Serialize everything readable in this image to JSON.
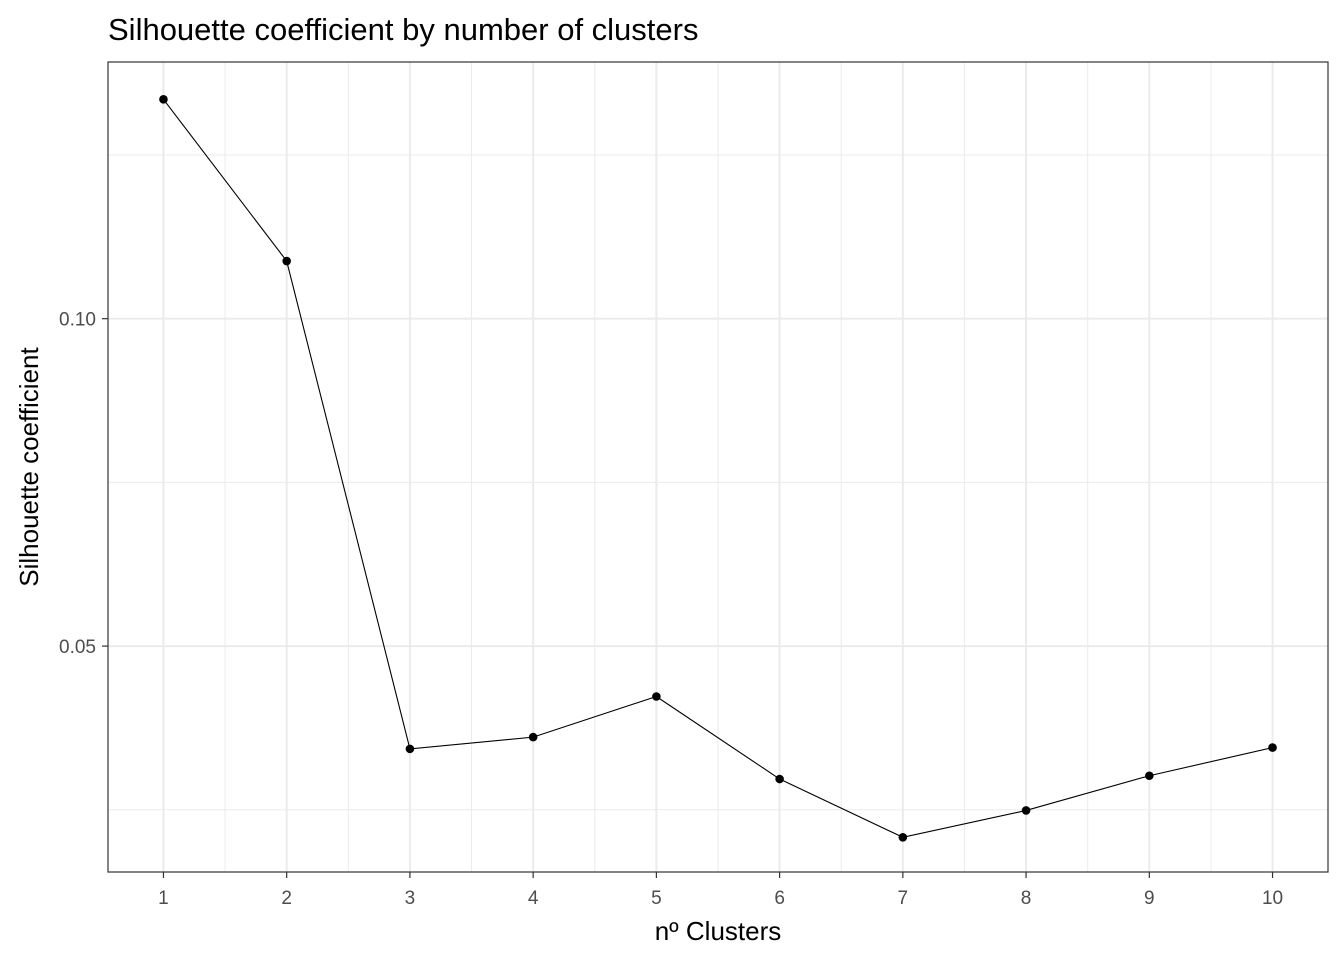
{
  "chart_data": {
    "type": "line",
    "title": "Silhouette coefficient by number of clusters",
    "xlabel": "nº Clusters",
    "ylabel": "Silhouette coefficient",
    "x": [
      1,
      2,
      3,
      4,
      5,
      6,
      7,
      8,
      9,
      10
    ],
    "series": [
      {
        "values": [
          0.1335,
          0.1088,
          0.0343,
          0.0361,
          0.0423,
          0.0297,
          0.0208,
          0.0249,
          0.0302,
          0.0345
        ]
      }
    ],
    "x_ticks": [
      "1",
      "2",
      "3",
      "4",
      "5",
      "6",
      "7",
      "8",
      "9",
      "10"
    ],
    "y_ticks": [
      0.05,
      0.1
    ],
    "y_tick_labels": [
      "0.05",
      "0.10"
    ],
    "xlim": [
      0.55,
      10.45
    ],
    "ylim": [
      0.0155,
      0.1392
    ],
    "grid": true,
    "legend": "none",
    "colors": {
      "line": "#000000",
      "points": "#000000",
      "grid": "#ebebeb",
      "panel_border": "#333333",
      "tick_text": "#4d4d4d"
    }
  }
}
